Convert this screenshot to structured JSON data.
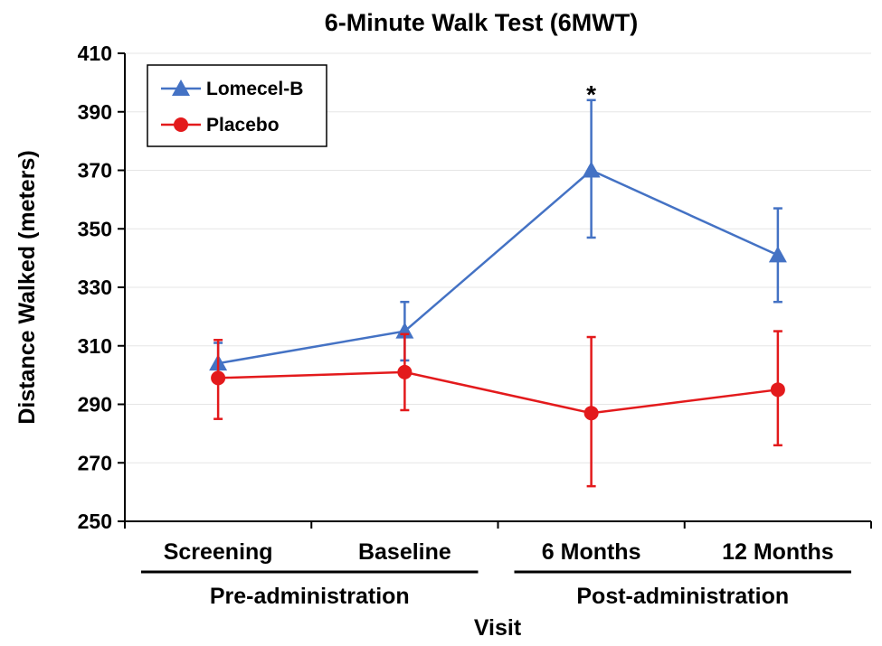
{
  "chart_data": {
    "type": "line",
    "title": "6-Minute Walk Test (6MWT)",
    "xlabel": "Visit",
    "ylabel": "Distance Walked (meters)",
    "ylim": [
      250,
      410
    ],
    "yticks": [
      250,
      270,
      290,
      310,
      330,
      350,
      370,
      390,
      410
    ],
    "categories": [
      "Screening",
      "Baseline",
      "6 Months",
      "12 Months"
    ],
    "category_groups": [
      {
        "label": "Pre-administration",
        "categories": [
          "Screening",
          "Baseline"
        ]
      },
      {
        "label": "Post-administration",
        "categories": [
          "6 Months",
          "12 Months"
        ]
      }
    ],
    "grid": true,
    "legend_position": "top-left",
    "series": [
      {
        "name": "Lomecel-B",
        "color": "#4472c4",
        "marker": "triangle",
        "values": [
          304,
          315,
          370,
          341
        ],
        "error_low": [
          298,
          305,
          347,
          325
        ],
        "error_high": [
          311,
          325,
          394,
          357
        ]
      },
      {
        "name": "Placebo",
        "color": "#e31a1c",
        "marker": "circle",
        "values": [
          299,
          301,
          287,
          295
        ],
        "error_low": [
          285,
          288,
          262,
          276
        ],
        "error_high": [
          312,
          314,
          313,
          315
        ]
      }
    ],
    "annotations": [
      {
        "text": "*",
        "category": "6 Months",
        "y": 398
      }
    ]
  }
}
